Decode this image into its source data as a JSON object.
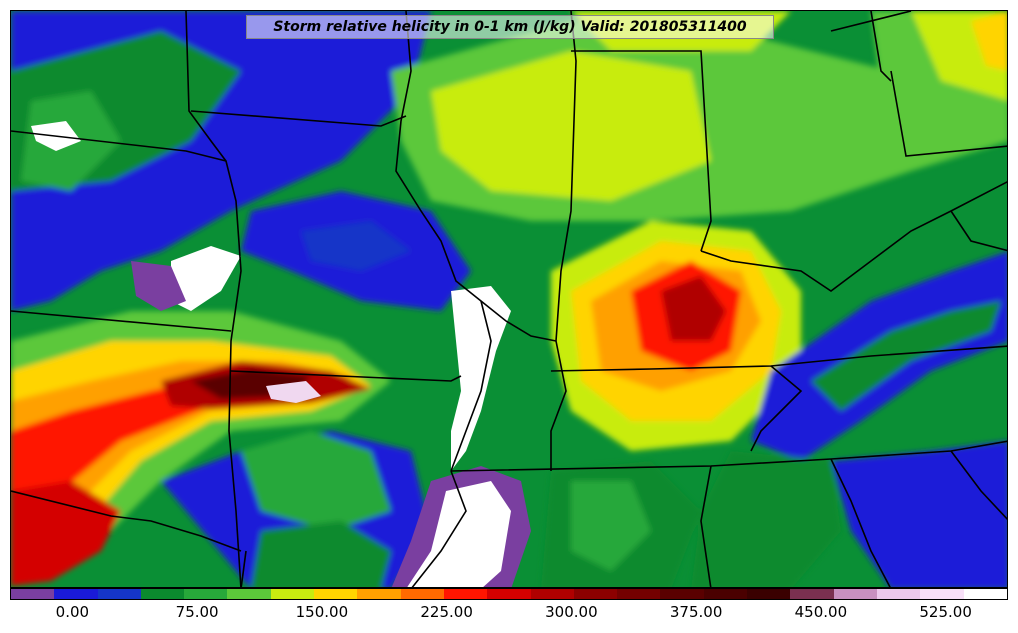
{
  "title": "Storm relative helicity in 0-1 km (J/kg) Valid: 201805311400",
  "colorbar": {
    "colors": [
      "#7a3fa0",
      "#1a1ad8",
      "#1535c8",
      "#0b8a2e",
      "#27a83a",
      "#5cc83a",
      "#c8ec10",
      "#ffd400",
      "#ffa000",
      "#ff6a00",
      "#ff1500",
      "#d40000",
      "#b00000",
      "#8c0000",
      "#740000",
      "#5a0000",
      "#4a0000",
      "#3a0000",
      "#7a3050",
      "#c890c0",
      "#ecc8ec",
      "#f8e0f8",
      "#ffffff"
    ],
    "tick_labels": [
      "0.00",
      "75.00",
      "150.00",
      "225.00",
      "300.00",
      "375.00",
      "450.00",
      "525.00"
    ],
    "tick_values": [
      0,
      75,
      150,
      225,
      300,
      375,
      450,
      525
    ],
    "min": -37.5,
    "max": 562.5
  }
}
